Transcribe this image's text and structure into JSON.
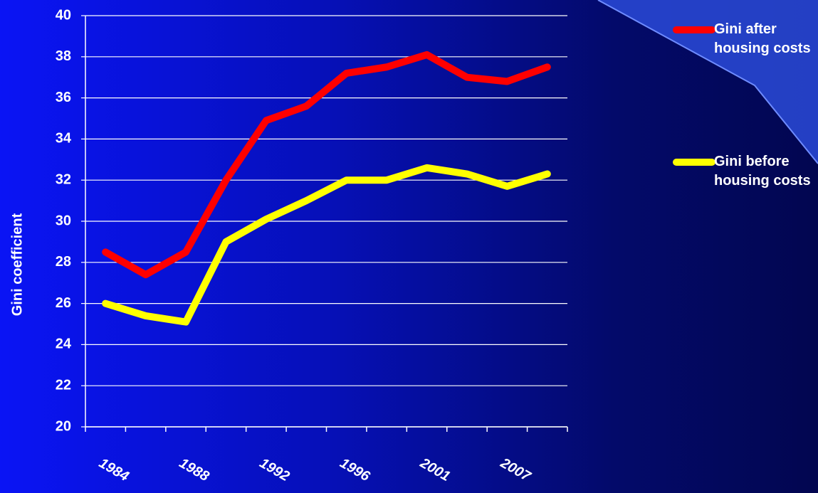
{
  "chart_data": {
    "type": "line",
    "y_label": "Gini coefficient",
    "categories": [
      "1984",
      null,
      "1988",
      null,
      "1992",
      null,
      "1996",
      null,
      "2001",
      null,
      "2007",
      null
    ],
    "series": [
      {
        "name": "Gini after housing costs",
        "color": "#ff0000",
        "values": [
          28.5,
          27.4,
          28.5,
          32.0,
          34.9,
          35.6,
          37.2,
          37.5,
          38.1,
          37.0,
          36.8,
          37.5
        ]
      },
      {
        "name": "Gini before housing costs",
        "color": "#ffff00",
        "values": [
          26.0,
          25.4,
          25.1,
          29.0,
          30.1,
          31.0,
          32.0,
          32.0,
          32.6,
          32.3,
          31.7,
          32.3
        ]
      }
    ],
    "ylim": [
      20,
      40
    ],
    "yticks": [
      20,
      22,
      24,
      26,
      28,
      30,
      32,
      34,
      36,
      38,
      40
    ],
    "grid": true
  }
}
